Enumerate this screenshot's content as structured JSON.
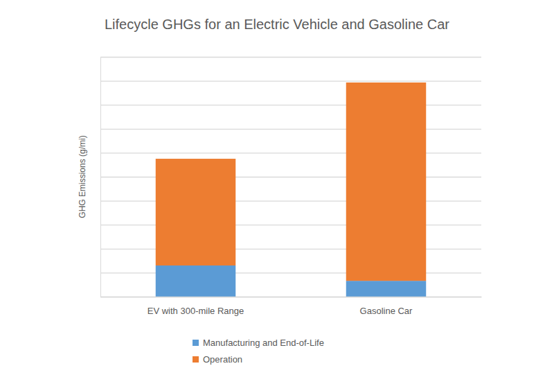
{
  "chart_data": {
    "type": "bar",
    "stacked": true,
    "title": "Lifecycle GHGs for an Electric Vehicle and Gasoline Car",
    "y_label": "GHG Emissions (g/mi)",
    "categories": [
      "EV with 300-mile Range",
      "Gasoline Car"
    ],
    "series": [
      {
        "name": "Manufacturing and End-of-Life",
        "color": "#5b9bd5",
        "values": [
          1.3,
          0.66
        ]
      },
      {
        "name": "Operation",
        "color": "#ed7d31",
        "values": [
          4.45,
          8.27
        ]
      }
    ],
    "ylim": [
      0,
      10
    ],
    "yticks": [
      0,
      1,
      2,
      3,
      4,
      5,
      6,
      7,
      8,
      9,
      10
    ],
    "grid": true,
    "tick_labels": "x",
    "legend": "bottom"
  }
}
